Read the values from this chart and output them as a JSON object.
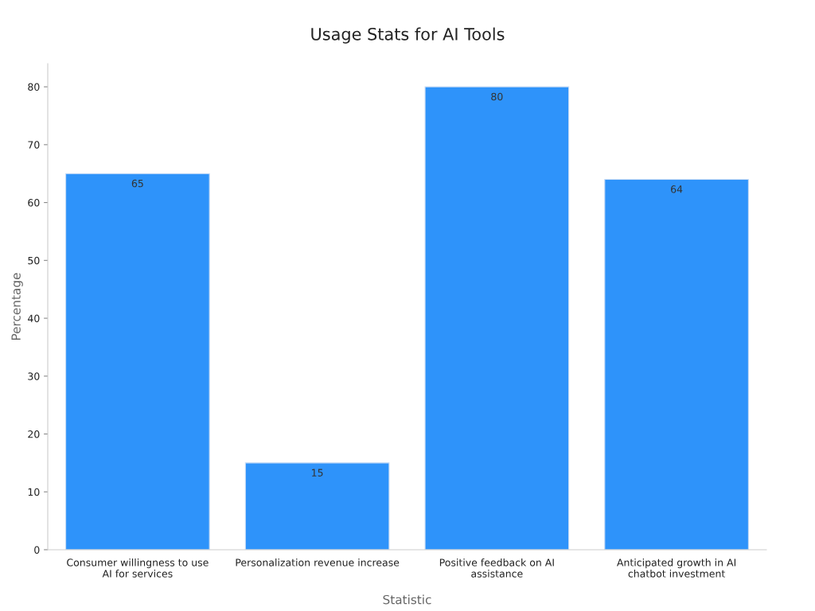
{
  "chart_data": {
    "type": "bar",
    "title": "Usage Stats for AI Tools",
    "xlabel": "Statistic",
    "ylabel": "Percentage",
    "categories": [
      "Consumer willingness to use\nAI for services",
      "Personalization revenue increase",
      "Positive feedback on AI\nassistance",
      "Anticipated growth in AI\nchatbot investment"
    ],
    "values": [
      65,
      15,
      80,
      64
    ],
    "color": "#2e93fa",
    "ylim": [
      0,
      84
    ],
    "yticks": [
      0,
      10,
      20,
      30,
      40,
      50,
      60,
      70,
      80
    ],
    "grid": false,
    "data_labels": true
  }
}
